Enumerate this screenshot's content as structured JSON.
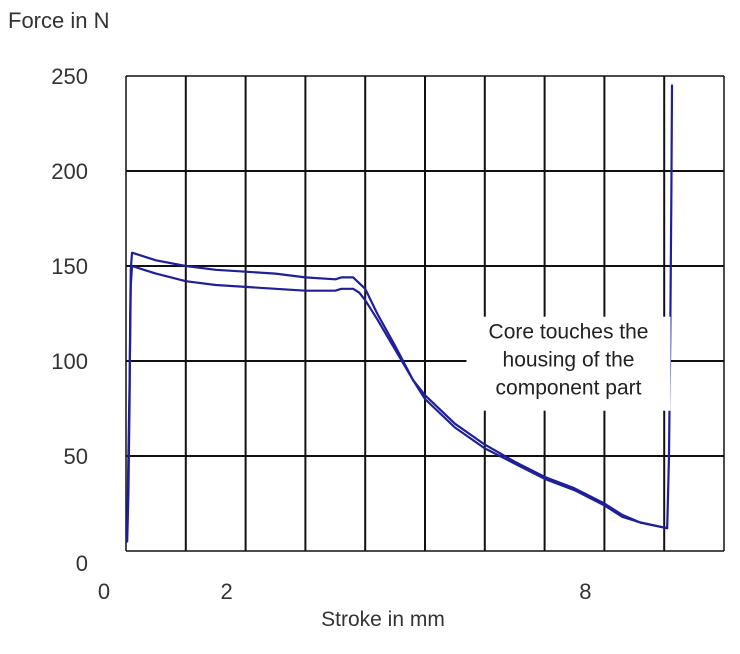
{
  "chart_data": {
    "type": "line",
    "title": "",
    "ylabel": "Force in N",
    "xlabel": "Stroke in mm",
    "xlim": [
      0,
      10
    ],
    "ylim": [
      0,
      250
    ],
    "grid": true,
    "x_ticks": [
      {
        "value": 0,
        "label": "0"
      },
      {
        "value": 2,
        "label": "2"
      },
      {
        "value": 8,
        "label": "8"
      }
    ],
    "x_gridlines": [
      0,
      1,
      2,
      3,
      4,
      5,
      6,
      7,
      8,
      9,
      10
    ],
    "y_ticks": [
      {
        "value": 0,
        "label": "0"
      },
      {
        "value": 50,
        "label": "50"
      },
      {
        "value": 100,
        "label": "100"
      },
      {
        "value": 150,
        "label": "150"
      },
      {
        "value": 200,
        "label": "200"
      },
      {
        "value": 250,
        "label": "250"
      }
    ],
    "series_color": "#1f1f9a",
    "grid_color": "#111111",
    "series": [
      {
        "points": [
          [
            0.02,
            5
          ],
          [
            0.04,
            30
          ],
          [
            0.06,
            80
          ],
          [
            0.07,
            125
          ],
          [
            0.08,
            148
          ],
          [
            0.1,
            157
          ],
          [
            0.2,
            156
          ],
          [
            0.5,
            153
          ],
          [
            1.0,
            150
          ],
          [
            1.5,
            148
          ],
          [
            2.0,
            147
          ],
          [
            2.5,
            146
          ],
          [
            3.0,
            144
          ],
          [
            3.5,
            143
          ],
          [
            3.6,
            144
          ],
          [
            3.8,
            144
          ],
          [
            4.0,
            138
          ],
          [
            4.2,
            125
          ],
          [
            4.5,
            108
          ],
          [
            4.8,
            90
          ],
          [
            5.0,
            82
          ],
          [
            5.5,
            67
          ],
          [
            6.0,
            56
          ],
          [
            6.5,
            47
          ],
          [
            7.0,
            39
          ],
          [
            7.5,
            33
          ],
          [
            8.0,
            25
          ],
          [
            8.3,
            19
          ],
          [
            8.6,
            15
          ],
          [
            8.9,
            13
          ],
          [
            9.05,
            12
          ],
          [
            9.08,
            50
          ],
          [
            9.1,
            110
          ],
          [
            9.12,
            190
          ],
          [
            9.13,
            245
          ]
        ]
      },
      {
        "points": [
          [
            0.02,
            10
          ],
          [
            0.06,
            90
          ],
          [
            0.08,
            140
          ],
          [
            0.1,
            150
          ],
          [
            0.3,
            148
          ],
          [
            0.5,
            146
          ],
          [
            1.0,
            142
          ],
          [
            1.5,
            140
          ],
          [
            2.0,
            139
          ],
          [
            2.5,
            138
          ],
          [
            3.0,
            137
          ],
          [
            3.5,
            137
          ],
          [
            3.6,
            138
          ],
          [
            3.8,
            138
          ],
          [
            3.9,
            136
          ],
          [
            4.0,
            132
          ],
          [
            4.2,
            122
          ],
          [
            4.5,
            106
          ],
          [
            4.8,
            90
          ],
          [
            5.0,
            80
          ],
          [
            5.5,
            65
          ],
          [
            6.0,
            54
          ],
          [
            6.5,
            46
          ],
          [
            7.0,
            38
          ],
          [
            7.5,
            32
          ],
          [
            8.0,
            24
          ],
          [
            8.3,
            18
          ],
          [
            8.6,
            15
          ],
          [
            8.9,
            13
          ],
          [
            9.05,
            12
          ]
        ]
      }
    ],
    "annotation": {
      "lines": [
        "Core touches the",
        "housing of  the",
        "component part"
      ],
      "at": [
        7.4,
        97
      ]
    }
  }
}
